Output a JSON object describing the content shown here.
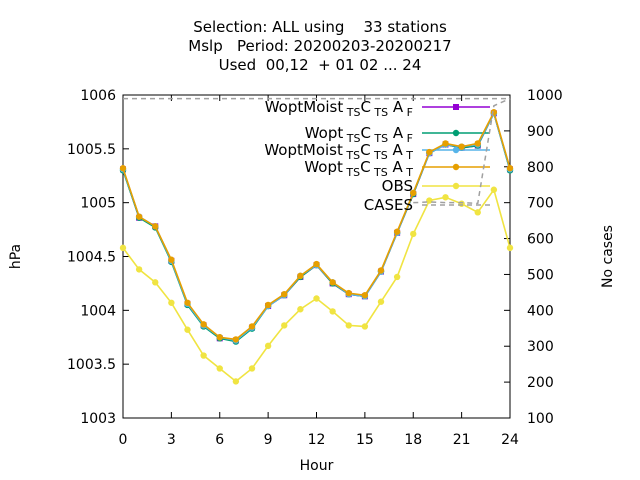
{
  "title_lines": [
    "Selection: ALL using    33 stations",
    "Mslp   Period: 20200203-20200217",
    "Used  00,12  + 01 02 ... 24"
  ],
  "chart_data": {
    "type": "line",
    "xlabel": "Hour",
    "ylabel": "hPa",
    "y2label": "No cases",
    "xlim": [
      0,
      24
    ],
    "ylim": [
      1003,
      1006
    ],
    "y2lim": [
      100,
      1000
    ],
    "x_ticks": [
      "0",
      "3",
      "6",
      "9",
      "12",
      "15",
      "18",
      "21",
      "24"
    ],
    "y_ticks": [
      "1003",
      "1003.5",
      "1004",
      "1004.5",
      "1005",
      "1005.5",
      "1006"
    ],
    "y2_ticks": [
      "100",
      "200",
      "300",
      "400",
      "500",
      "600",
      "700",
      "800",
      "900",
      "1000"
    ],
    "grid": false,
    "legend_position": "top-right",
    "x": [
      0,
      1,
      2,
      3,
      4,
      5,
      6,
      7,
      8,
      9,
      10,
      11,
      12,
      13,
      14,
      15,
      16,
      17,
      18,
      19,
      20,
      21,
      22,
      23,
      24
    ],
    "series": [
      {
        "name": "WoptMoist",
        "sub1": "TS",
        "mid": "C",
        "sub2": "TS",
        "tail": "A",
        "sub3": "F",
        "color": "#9400d3",
        "marker": "square",
        "values": [
          1005.31,
          1004.86,
          1004.78,
          1004.46,
          1004.06,
          1003.86,
          1003.74,
          1003.72,
          1003.84,
          1004.04,
          1004.14,
          1004.31,
          1004.42,
          1004.25,
          1004.15,
          1004.13,
          1004.36,
          1004.72,
          1005.08,
          1005.46,
          1005.54,
          1005.51,
          1005.53,
          1005.83,
          1005.31
        ]
      },
      {
        "name": "Wopt",
        "sub1": "TS",
        "mid": "C",
        "sub2": "TS",
        "tail": "A",
        "sub3": "F",
        "color": "#009e73",
        "marker": "circle",
        "values": [
          1005.3,
          1004.86,
          1004.77,
          1004.45,
          1004.05,
          1003.85,
          1003.74,
          1003.71,
          1003.83,
          1004.04,
          1004.14,
          1004.31,
          1004.42,
          1004.25,
          1004.15,
          1004.13,
          1004.36,
          1004.72,
          1005.08,
          1005.46,
          1005.54,
          1005.51,
          1005.53,
          1005.83,
          1005.3
        ]
      },
      {
        "name": "WoptMoist",
        "sub1": "TS",
        "mid": "C",
        "sub2": "TS",
        "tail": "A",
        "sub3": "T",
        "color": "#56b4e9",
        "marker": "circle",
        "values": [
          1005.31,
          1004.87,
          1004.78,
          1004.46,
          1004.06,
          1003.86,
          1003.75,
          1003.72,
          1003.84,
          1004.04,
          1004.14,
          1004.32,
          1004.42,
          1004.26,
          1004.15,
          1004.13,
          1004.36,
          1004.72,
          1005.09,
          1005.46,
          1005.54,
          1005.52,
          1005.54,
          1005.83,
          1005.31
        ]
      },
      {
        "name": "Wopt",
        "sub1": "TS",
        "mid": "C",
        "sub2": "TS",
        "tail": "A",
        "sub3": "T",
        "color": "#e69f00",
        "marker": "circle",
        "values": [
          1005.32,
          1004.87,
          1004.78,
          1004.47,
          1004.07,
          1003.87,
          1003.75,
          1003.73,
          1003.85,
          1004.05,
          1004.15,
          1004.32,
          1004.43,
          1004.26,
          1004.16,
          1004.14,
          1004.37,
          1004.73,
          1005.09,
          1005.47,
          1005.55,
          1005.52,
          1005.55,
          1005.84,
          1005.32
        ]
      },
      {
        "name": "OBS",
        "color": "#f0e442",
        "marker": "circle",
        "values": [
          1004.58,
          1004.38,
          1004.26,
          1004.07,
          1003.82,
          1003.58,
          1003.46,
          1003.34,
          1003.46,
          1003.67,
          1003.86,
          1004.01,
          1004.11,
          1003.99,
          1003.86,
          1003.85,
          1004.08,
          1004.31,
          1004.71,
          1005.02,
          1005.05,
          1004.99,
          1004.91,
          1005.12,
          1004.58
        ]
      },
      {
        "name": "CASES",
        "color": "#a0a0a0",
        "axis": "y2",
        "dash": true,
        "values": [
          990,
          990,
          990,
          990,
          990,
          990,
          990,
          990,
          990,
          990,
          990,
          990,
          990,
          990,
          990,
          990,
          990,
          990,
          990,
          990,
          990,
          990,
          990,
          990,
          990
        ],
        "tail_x": [
          18,
          19,
          20,
          21,
          22,
          23,
          24
        ],
        "tail_values": [
          700,
          702,
          700,
          700,
          698,
          970,
          990
        ]
      }
    ]
  }
}
